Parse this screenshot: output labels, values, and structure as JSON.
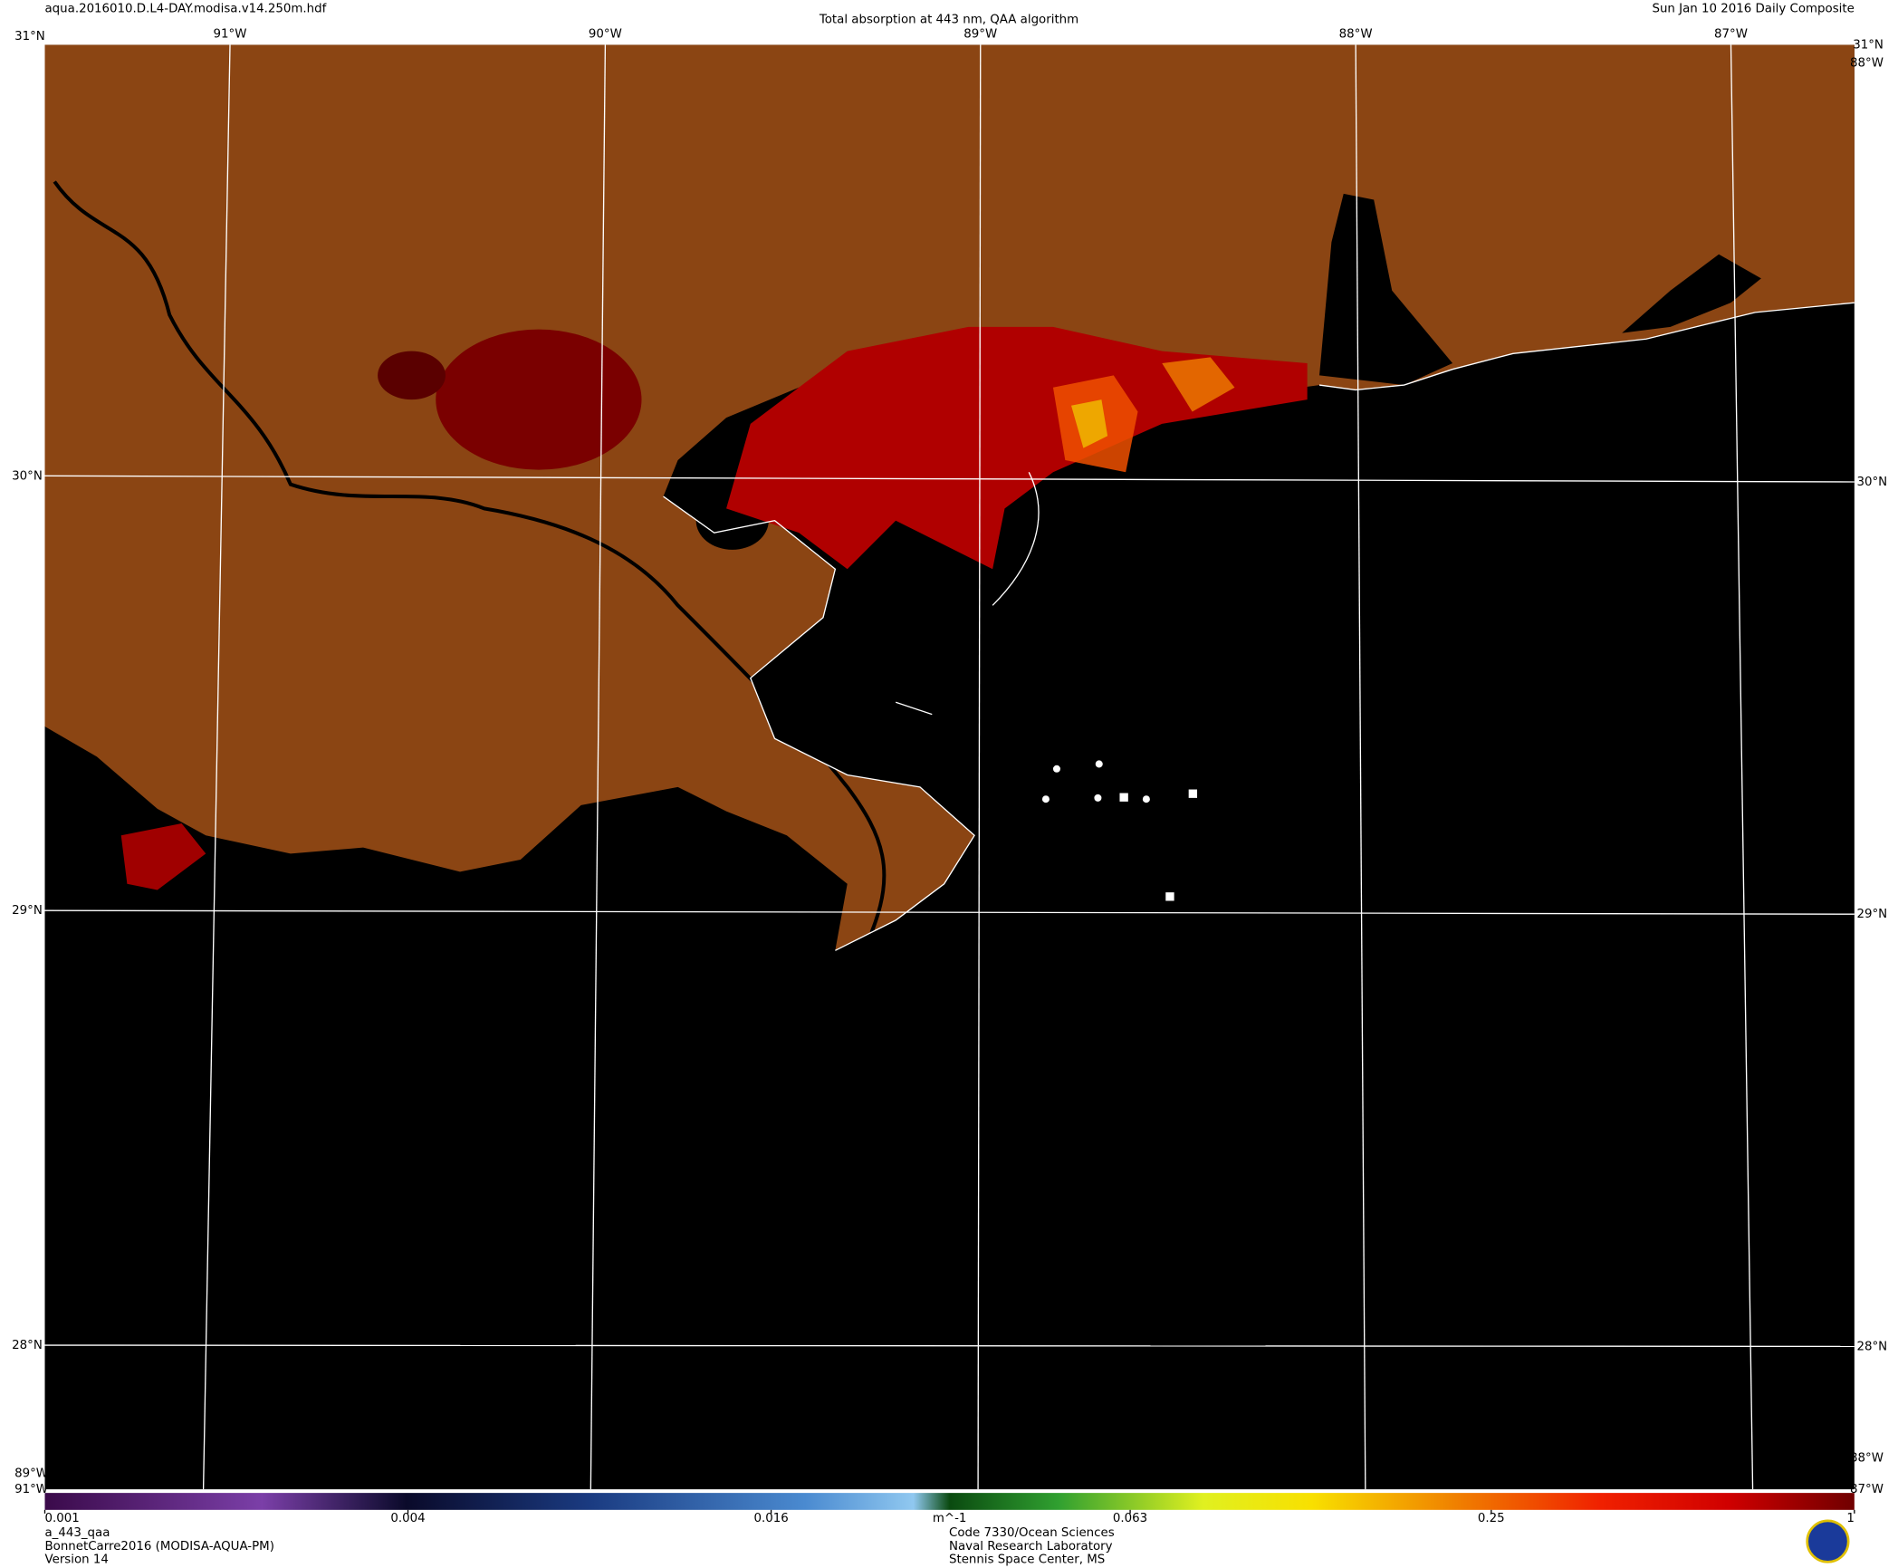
{
  "header": {
    "file": "aqua.2016010.D.L4-DAY.modisa.v14.250m.hdf",
    "title": "Total absorption at 443 nm, QAA algorithm",
    "date": "Sun Jan 10 2016 Daily Composite"
  },
  "graticule": {
    "longitudes": [
      {
        "value": -91,
        "label": "91°W"
      },
      {
        "value": -90,
        "label": "90°W"
      },
      {
        "value": -89,
        "label": "89°W"
      },
      {
        "value": -88,
        "label": "88°W"
      },
      {
        "value": -87,
        "label": "87°W"
      }
    ],
    "latitudes": [
      {
        "value": 30,
        "label": "30°N"
      },
      {
        "value": 29,
        "label": "29°N"
      },
      {
        "value": 28,
        "label": "28°N"
      }
    ],
    "corner_labels": [
      "31°N",
      "31°N",
      "88°W",
      "89°W",
      "91°W",
      "88°W",
      "87°W"
    ]
  },
  "colorbar": {
    "lim": [
      0.001,
      1
    ],
    "log": true,
    "ticks": [
      0.001,
      0.004,
      0.016,
      0.063,
      0.25,
      1
    ],
    "unit": "m^-1"
  },
  "footer": {
    "left": [
      "a_443_qaa",
      "BonnetCarre2016 (MODISA-AQUA-PM)",
      "Version 14"
    ],
    "center": [
      "Code 7330/Ocean Sciences",
      "Naval Research Laboratory",
      "Stennis Space Center, MS"
    ]
  }
}
